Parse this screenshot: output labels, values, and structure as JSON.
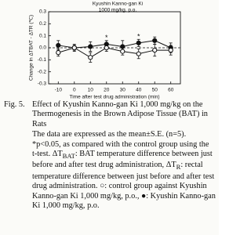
{
  "chart_data": {
    "type": "line",
    "subtitle_lines": [
      "Kyushin Kanno-gan Ki",
      "1000 mg/kg, p.o."
    ],
    "xlabel": "Time after test drug administration (min)",
    "ylabel": "Change in ΔTBAT - ΔTR (℃)",
    "x": [
      -10,
      0,
      10,
      20,
      30,
      40,
      50,
      60
    ],
    "xlim": [
      -16,
      66
    ],
    "xticks": [
      -10,
      0,
      10,
      20,
      30,
      40,
      50,
      60
    ],
    "ylim": [
      -0.3,
      0.3
    ],
    "yticks": [
      {
        "value": -0.3,
        "label": "-0.3"
      },
      {
        "value": -0.2,
        "label": "-0.2"
      },
      {
        "value": -0.1,
        "label": "-0.1"
      },
      {
        "value": 0,
        "label": "0.0"
      },
      {
        "value": 0.1,
        "label": "0.1"
      },
      {
        "value": 0.2,
        "label": "0.2"
      },
      {
        "value": 0.3,
        "label": "0.3"
      }
    ],
    "zero_line": "dashed",
    "series": [
      {
        "marker": "filled",
        "color": "#111111",
        "values": [
          0.02,
          0.0,
          0.01,
          0.03,
          0.01,
          0.04,
          0.06,
          0.0
        ],
        "errors": [
          0.04,
          0.03,
          0.04,
          0.03,
          0.05,
          0.03,
          0.03,
          0.04
        ]
      },
      {
        "marker": "open",
        "color": "#111111",
        "values": [
          -0.04,
          0.0,
          -0.08,
          0.0,
          -0.03,
          -0.05,
          -0.02,
          -0.02
        ],
        "errors": [
          0.03,
          0.02,
          0.04,
          0.03,
          0.03,
          0.04,
          0.05,
          0.04
        ]
      }
    ],
    "annotations": [
      {
        "x": 20,
        "text": "*"
      },
      {
        "x": 40,
        "text": "*"
      }
    ]
  },
  "caption": {
    "label": "Fig. 5.",
    "title": "Effect of Kyushin Kanno-gan Ki 1,000 mg/kg on the Thermogenesis in the Brown Adipose Tissue (BAT) in Rats",
    "body": [
      "The data are expressed as the mean±S.E. (n=5). *p<0.05, as compared with the control group using the t-test. ΔT",
      "BAT",
      ": BAT temperature difference between just before and after test drug administration, ΔT",
      "R",
      ": rectal temperature difference between just before and after test drug administration. ○: control group against Kyushin Kanno-gan Ki 1,000 mg/kg, p.o., ●: Kyushin Kanno-gan Ki 1,000 mg/kg, p.o."
    ]
  }
}
